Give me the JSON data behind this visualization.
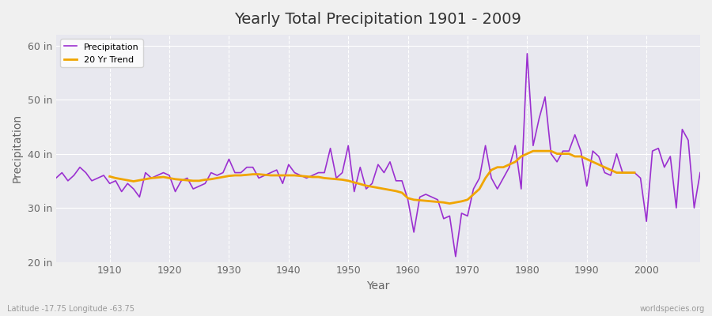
{
  "title": "Yearly Total Precipitation 1901 - 2009",
  "xlabel": "Year",
  "ylabel": "Precipitation",
  "bottom_left_label": "Latitude -17.75 Longitude -63.75",
  "bottom_right_label": "worldspecies.org",
  "ylim": [
    20,
    62
  ],
  "yticks": [
    20,
    30,
    40,
    50,
    60
  ],
  "ytick_labels": [
    "20 in",
    "30 in",
    "40 in",
    "50 in",
    "60 in"
  ],
  "xlim": [
    1901,
    2009
  ],
  "xticks": [
    1910,
    1920,
    1930,
    1940,
    1950,
    1960,
    1970,
    1980,
    1990,
    2000
  ],
  "precip_color": "#9b30d0",
  "trend_color": "#f0a500",
  "background_color": "#f0f0f0",
  "plot_background": "#e8e8ee",
  "grid_color": "#ffffff",
  "years": [
    1901,
    1902,
    1903,
    1904,
    1905,
    1906,
    1907,
    1908,
    1909,
    1910,
    1911,
    1912,
    1913,
    1914,
    1915,
    1916,
    1917,
    1918,
    1919,
    1920,
    1921,
    1922,
    1923,
    1924,
    1925,
    1926,
    1927,
    1928,
    1929,
    1930,
    1931,
    1932,
    1933,
    1934,
    1935,
    1936,
    1937,
    1938,
    1939,
    1940,
    1941,
    1942,
    1943,
    1944,
    1945,
    1946,
    1947,
    1948,
    1949,
    1950,
    1951,
    1952,
    1953,
    1954,
    1955,
    1956,
    1957,
    1958,
    1959,
    1960,
    1961,
    1962,
    1963,
    1964,
    1965,
    1966,
    1967,
    1968,
    1969,
    1970,
    1971,
    1972,
    1973,
    1974,
    1975,
    1976,
    1977,
    1978,
    1979,
    1980,
    1981,
    1982,
    1983,
    1984,
    1985,
    1986,
    1987,
    1988,
    1989,
    1990,
    1991,
    1992,
    1993,
    1994,
    1995,
    1996,
    1997,
    1998,
    1999,
    2000,
    2001,
    2002,
    2003,
    2004,
    2005,
    2006,
    2007,
    2008,
    2009
  ],
  "precip": [
    35.5,
    36.5,
    35.0,
    36.0,
    37.5,
    36.5,
    35.0,
    35.5,
    36.0,
    34.5,
    35.0,
    33.0,
    34.5,
    33.5,
    32.0,
    36.5,
    35.5,
    36.0,
    36.5,
    36.0,
    33.0,
    35.0,
    35.5,
    33.5,
    34.0,
    34.5,
    36.5,
    36.0,
    36.5,
    39.0,
    36.5,
    36.5,
    37.5,
    37.5,
    35.5,
    36.0,
    36.5,
    37.0,
    34.5,
    38.0,
    36.5,
    36.0,
    35.5,
    36.0,
    36.5,
    36.5,
    41.0,
    35.5,
    36.5,
    41.5,
    33.0,
    37.5,
    33.5,
    34.5,
    38.0,
    36.5,
    38.5,
    35.0,
    35.0,
    31.5,
    25.5,
    32.0,
    32.5,
    32.0,
    31.5,
    28.0,
    28.5,
    21.0,
    29.0,
    28.5,
    33.5,
    35.5,
    41.5,
    35.5,
    33.5,
    35.5,
    37.5,
    41.5,
    33.5,
    58.5,
    41.5,
    46.5,
    50.5,
    40.0,
    38.5,
    40.5,
    40.5,
    43.5,
    40.5,
    34.0,
    40.5,
    39.5,
    36.5,
    36.0,
    40.0,
    36.5,
    36.5,
    36.5,
    35.5,
    27.5,
    40.5,
    41.0,
    37.5,
    39.5,
    30.0,
    44.5,
    42.5,
    30.0,
    36.5
  ],
  "trend": [
    null,
    null,
    null,
    null,
    null,
    null,
    null,
    null,
    null,
    35.8,
    35.5,
    35.3,
    35.1,
    34.9,
    35.1,
    35.3,
    35.5,
    35.6,
    35.7,
    35.5,
    35.3,
    35.2,
    35.1,
    35.0,
    35.0,
    35.2,
    35.3,
    35.5,
    35.7,
    35.9,
    36.0,
    36.0,
    36.1,
    36.2,
    36.2,
    36.1,
    36.0,
    36.0,
    36.0,
    36.0,
    36.0,
    35.9,
    35.8,
    35.7,
    35.7,
    35.5,
    35.4,
    35.3,
    35.2,
    35.0,
    34.7,
    34.4,
    34.1,
    33.9,
    33.7,
    33.5,
    33.3,
    33.1,
    32.8,
    31.8,
    31.5,
    31.4,
    31.3,
    31.2,
    31.1,
    31.0,
    30.8,
    31.0,
    31.2,
    31.5,
    32.5,
    33.5,
    35.5,
    37.0,
    37.5,
    37.5,
    38.0,
    38.5,
    39.5,
    40.0,
    40.5,
    40.5,
    40.5,
    40.5,
    40.0,
    40.0,
    40.0,
    39.5,
    39.5,
    39.0,
    38.5,
    38.0,
    37.5,
    37.0,
    36.5,
    36.5,
    36.5,
    36.5,
    null,
    null,
    null,
    null,
    null,
    null,
    null,
    null,
    null,
    null
  ]
}
